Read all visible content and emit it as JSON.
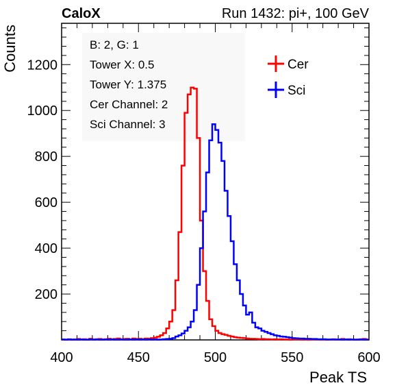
{
  "header": {
    "left": "CaloX",
    "right": "Run 1432: pi+, 100 GeV"
  },
  "info_box": {
    "lines": [
      "B: 2, G: 1",
      "Tower X: 0.5",
      "Tower Y: 1.375",
      "Cer Channel: 2",
      "Sci Channel: 3"
    ]
  },
  "colors": {
    "cer": "#ff0000",
    "sci": "#0000ff"
  },
  "chart_data": {
    "type": "line",
    "xlabel": "Peak TS",
    "ylabel": "Counts",
    "xlim": [
      400,
      600
    ],
    "ylim": [
      0,
      1380
    ],
    "x_ticks": [
      400,
      450,
      500,
      550,
      600
    ],
    "y_ticks": [
      200,
      400,
      600,
      800,
      1000,
      1200
    ],
    "legend_position": "top-right",
    "series": [
      {
        "name": "Cer",
        "color": "#ff0000",
        "x": [
          400,
          402,
          404,
          406,
          408,
          410,
          412,
          414,
          416,
          418,
          420,
          422,
          424,
          426,
          428,
          430,
          432,
          434,
          436,
          438,
          440,
          442,
          444,
          446,
          448,
          450,
          452,
          454,
          456,
          458,
          460,
          462,
          464,
          466,
          468,
          470,
          472,
          474,
          476,
          478,
          480,
          482,
          484,
          486,
          488,
          490,
          492,
          494,
          496,
          498,
          500,
          502,
          504,
          506,
          508,
          510,
          512,
          514,
          516,
          518,
          520,
          522,
          524,
          526,
          528,
          530,
          532,
          534,
          536,
          538,
          540,
          542,
          544,
          546,
          548,
          550,
          552,
          554,
          556,
          558,
          560,
          562,
          564,
          566,
          568,
          570,
          572,
          574,
          576,
          578,
          580,
          582,
          584,
          586,
          588,
          590,
          592,
          594,
          596,
          598
        ],
        "values": [
          2,
          1,
          3,
          2,
          1,
          4,
          2,
          3,
          1,
          5,
          2,
          3,
          4,
          2,
          3,
          5,
          3,
          4,
          6,
          3,
          4,
          5,
          2,
          6,
          4,
          5,
          3,
          6,
          5,
          8,
          10,
          14,
          20,
          30,
          50,
          80,
          130,
          260,
          470,
          760,
          990,
          1070,
          1100,
          1095,
          880,
          520,
          300,
          170,
          90,
          60,
          40,
          30,
          25,
          22,
          18,
          15,
          12,
          10,
          9,
          8,
          6,
          5,
          5,
          4,
          3,
          4,
          3,
          3,
          2,
          3,
          2,
          3,
          2,
          2,
          1,
          2,
          3,
          2,
          1,
          2,
          1,
          2,
          3,
          2,
          1,
          2,
          1,
          2,
          3,
          1,
          2,
          4,
          2,
          3,
          2,
          1,
          2,
          3,
          4,
          2
        ]
      },
      {
        "name": "Sci",
        "color": "#0000ff",
        "x": [
          400,
          402,
          404,
          406,
          408,
          410,
          412,
          414,
          416,
          418,
          420,
          422,
          424,
          426,
          428,
          430,
          432,
          434,
          436,
          438,
          440,
          442,
          444,
          446,
          448,
          450,
          452,
          454,
          456,
          458,
          460,
          462,
          464,
          466,
          468,
          470,
          472,
          474,
          476,
          478,
          480,
          482,
          484,
          486,
          488,
          490,
          492,
          494,
          496,
          498,
          500,
          502,
          504,
          506,
          508,
          510,
          512,
          514,
          516,
          518,
          520,
          522,
          524,
          526,
          528,
          530,
          532,
          534,
          536,
          538,
          540,
          542,
          544,
          546,
          548,
          550,
          552,
          554,
          556,
          558,
          560,
          562,
          564,
          566,
          568,
          570,
          572,
          574,
          576,
          578,
          580,
          582,
          584,
          586,
          588,
          590,
          592,
          594,
          596,
          598
        ],
        "values": [
          2,
          1,
          2,
          1,
          2,
          1,
          2,
          1,
          1,
          2,
          1,
          2,
          1,
          1,
          2,
          1,
          2,
          1,
          1,
          2,
          1,
          1,
          2,
          1,
          2,
          1,
          2,
          1,
          2,
          1,
          2,
          1,
          2,
          3,
          4,
          5,
          8,
          15,
          20,
          28,
          40,
          55,
          80,
          130,
          240,
          400,
          560,
          730,
          870,
          940,
          915,
          860,
          780,
          650,
          540,
          430,
          330,
          260,
          200,
          150,
          110,
          120,
          75,
          55,
          50,
          40,
          35,
          30,
          25,
          20,
          18,
          15,
          14,
          12,
          10,
          8,
          7,
          6,
          6,
          5,
          5,
          4,
          4,
          3,
          3,
          3,
          2,
          2,
          2,
          2,
          2,
          1,
          2,
          1,
          2,
          1,
          1,
          2,
          1,
          1
        ]
      }
    ]
  }
}
